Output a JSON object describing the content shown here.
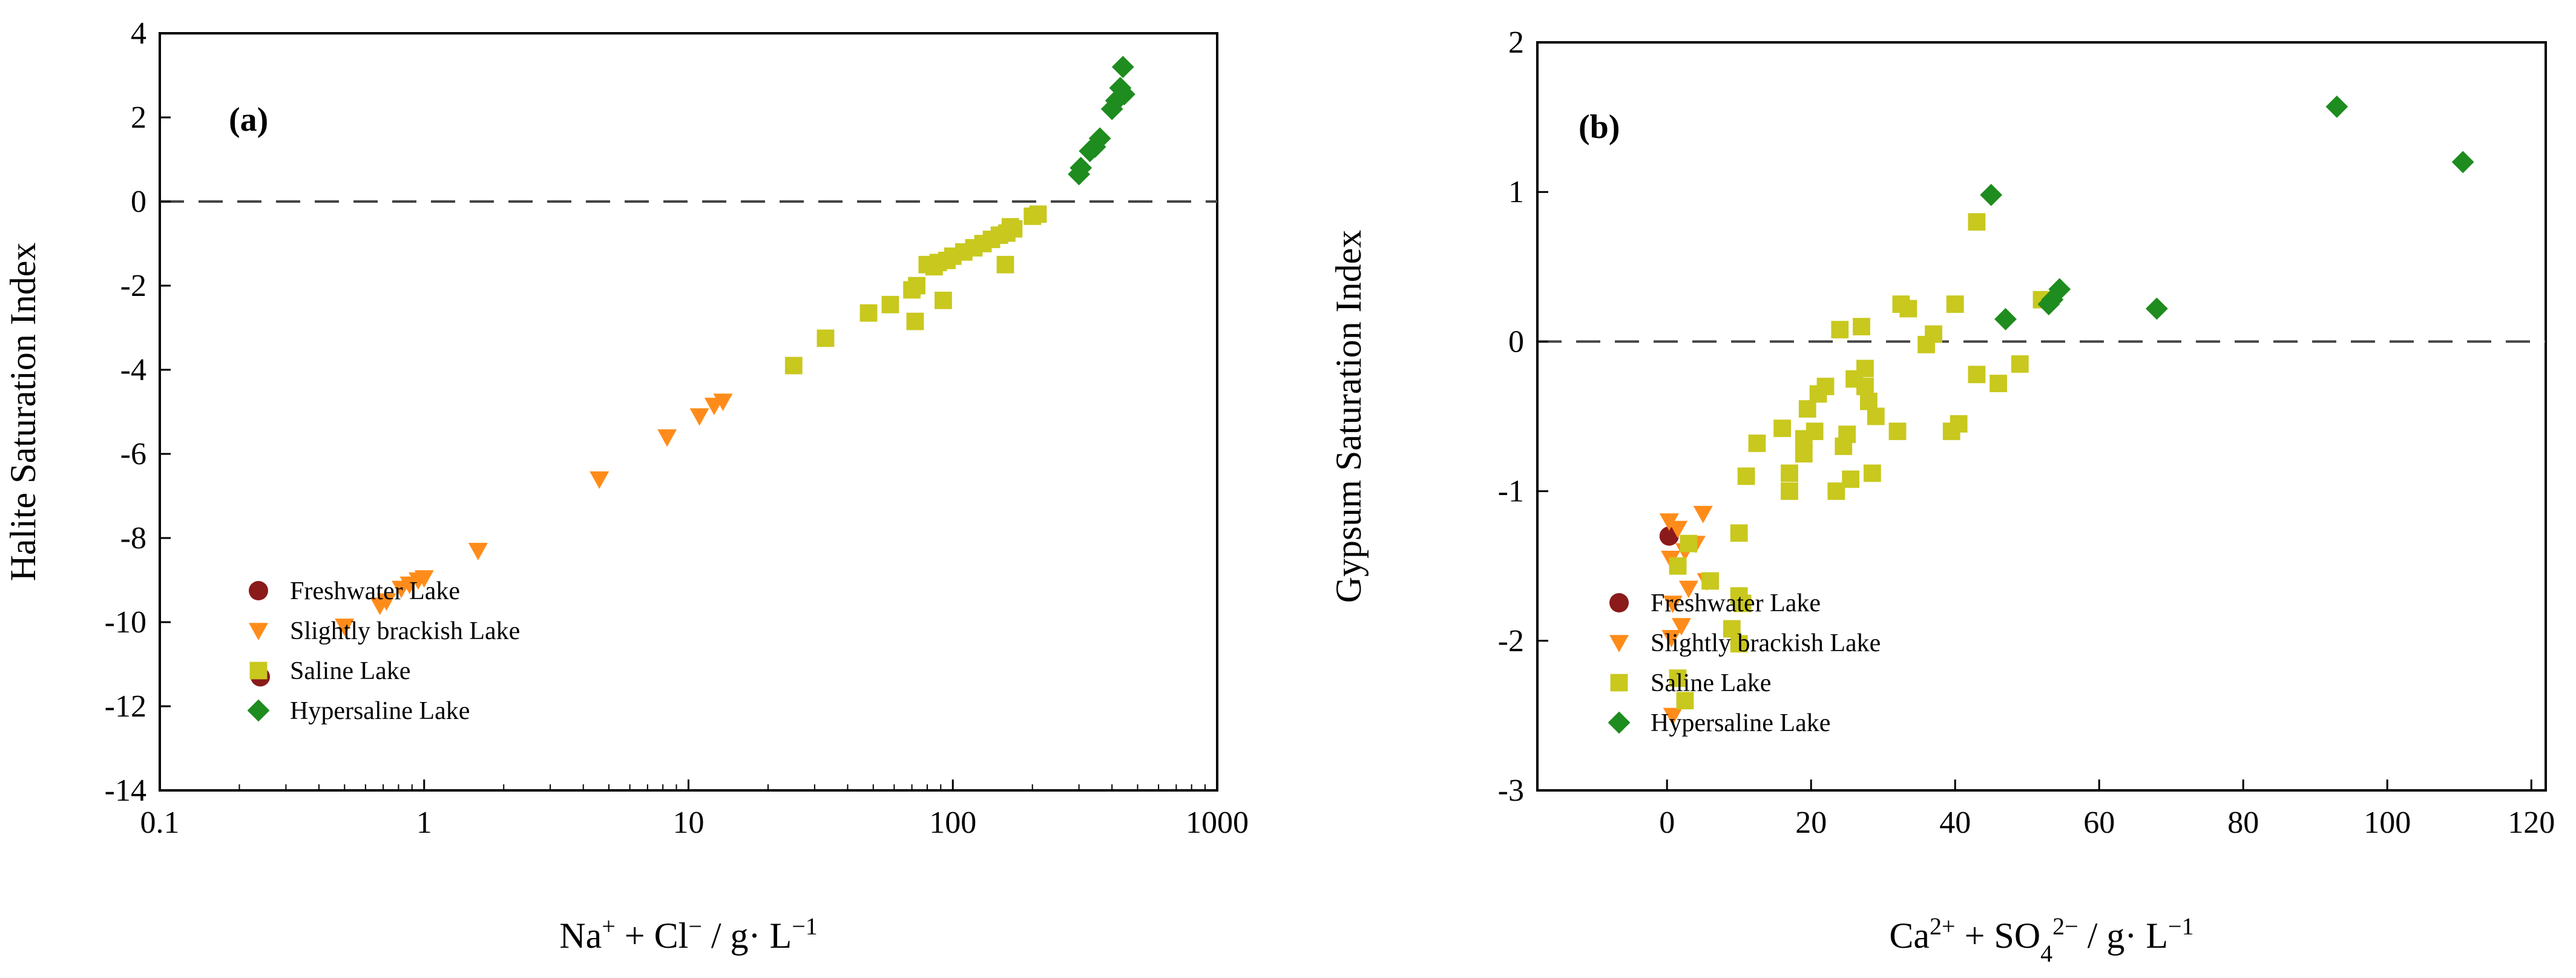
{
  "chart_data": [
    {
      "panel": "(a)",
      "type": "scatter",
      "xscale": "log",
      "xlim": [
        0.1,
        1000
      ],
      "ylim": [
        -14,
        4
      ],
      "xticks": [
        "0.1",
        "1",
        "10",
        "100",
        "1000"
      ],
      "yticks": [
        "-14",
        "-12",
        "-10",
        "-8",
        "-6",
        "-4",
        "-2",
        "0",
        "2",
        "4"
      ],
      "xlabel": {
        "t1": "Na",
        "s1": "+",
        "t2": " + Cl",
        "s2": "−",
        "t3": " / g· L",
        "s3": "−1"
      },
      "ylabel": "Halite Saturation Index",
      "reference_line": {
        "y": 0,
        "style": "dashed"
      },
      "series": [
        {
          "name": "Freshwater Lake",
          "marker": "circle",
          "color": "#8b1a1a",
          "points": [
            [
              0.24,
              -11.3
            ]
          ]
        },
        {
          "name": "Slightly brackish Lake",
          "marker": "triangle-down",
          "color": "#ff8c1a",
          "points": [
            [
              0.5,
              -10.1
            ],
            [
              0.68,
              -9.6
            ],
            [
              0.72,
              -9.5
            ],
            [
              0.82,
              -9.2
            ],
            [
              0.88,
              -9.1
            ],
            [
              0.95,
              -9.0
            ],
            [
              1.0,
              -8.95
            ],
            [
              1.6,
              -8.3
            ],
            [
              4.6,
              -6.6
            ],
            [
              8.3,
              -5.6
            ],
            [
              11.0,
              -5.1
            ],
            [
              12.5,
              -4.85
            ],
            [
              13.5,
              -4.75
            ]
          ]
        },
        {
          "name": "Saline Lake",
          "marker": "square",
          "color": "#c8c81e",
          "points": [
            [
              25,
              -3.9
            ],
            [
              33,
              -3.25
            ],
            [
              48,
              -2.65
            ],
            [
              58,
              -2.45
            ],
            [
              70,
              -2.1
            ],
            [
              73,
              -2.0
            ],
            [
              72,
              -2.85
            ],
            [
              80,
              -1.5
            ],
            [
              85,
              -1.55
            ],
            [
              88,
              -1.45
            ],
            [
              92,
              -2.35
            ],
            [
              95,
              -1.4
            ],
            [
              100,
              -1.3
            ],
            [
              110,
              -1.2
            ],
            [
              120,
              -1.1
            ],
            [
              130,
              -1.0
            ],
            [
              140,
              -0.9
            ],
            [
              150,
              -0.8
            ],
            [
              160,
              -0.75
            ],
            [
              165,
              -0.6
            ],
            [
              158,
              -1.5
            ],
            [
              170,
              -0.65
            ],
            [
              200,
              -0.35
            ],
            [
              210,
              -0.3
            ]
          ]
        },
        {
          "name": "Hypersaline Lake",
          "marker": "diamond",
          "color": "#1e8c1e",
          "points": [
            [
              300,
              0.65
            ],
            [
              305,
              0.8
            ],
            [
              330,
              1.2
            ],
            [
              345,
              1.3
            ],
            [
              360,
              1.5
            ],
            [
              400,
              2.2
            ],
            [
              415,
              2.4
            ],
            [
              430,
              2.7
            ],
            [
              440,
              3.2
            ],
            [
              445,
              2.55
            ]
          ]
        }
      ],
      "legend": {
        "placement": "bottom-right",
        "entries": [
          "Freshwater Lake",
          "Slightly brackish Lake",
          "Saline Lake",
          "Hypersaline Lake"
        ]
      }
    },
    {
      "panel": "(b)",
      "type": "scatter",
      "xscale": "linear",
      "xlim": [
        -18,
        122
      ],
      "ylim": [
        -3,
        2
      ],
      "xticks": [
        "0",
        "20",
        "40",
        "60",
        "80",
        "100",
        "120"
      ],
      "yticks": [
        "-3",
        "-2",
        "-1",
        "0",
        "1",
        "2"
      ],
      "xlabel": {
        "t1": "Ca",
        "s1": "2+",
        "t2": " + SO",
        "sub": "4",
        "s2": "2−",
        "t3": " / g· L",
        "s3": "−1"
      },
      "ylabel": "Gypsum Saturation Index",
      "reference_line": {
        "y": 0,
        "style": "dashed"
      },
      "series": [
        {
          "name": "Freshwater Lake",
          "marker": "circle",
          "color": "#8b1a1a",
          "points": [
            [
              0.3,
              -1.3
            ]
          ]
        },
        {
          "name": "Slightly brackish Lake",
          "marker": "triangle-down",
          "color": "#ff8c1a",
          "points": [
            [
              0.3,
              -1.2
            ],
            [
              0.5,
              -1.45
            ],
            [
              0.8,
              -1.75
            ],
            [
              0.6,
              -1.98
            ],
            [
              0.8,
              -2.5
            ],
            [
              1.5,
              -1.25
            ],
            [
              2.0,
              -1.9
            ],
            [
              2.5,
              -1.4
            ],
            [
              3.0,
              -1.65
            ],
            [
              4.0,
              -1.35
            ],
            [
              5.0,
              -1.15
            ],
            [
              5.5,
              -1.6
            ]
          ]
        },
        {
          "name": "Saline Lake",
          "marker": "square",
          "color": "#c8c81e",
          "points": [
            [
              1.5,
              -2.25
            ],
            [
              2.5,
              -2.4
            ],
            [
              1.5,
              -1.5
            ],
            [
              3.0,
              -1.35
            ],
            [
              6.0,
              -1.6
            ],
            [
              9.0,
              -1.92
            ],
            [
              10,
              -2.02
            ],
            [
              10,
              -1.7
            ],
            [
              10.5,
              -1.75
            ],
            [
              10,
              -1.28
            ],
            [
              11,
              -0.9
            ],
            [
              12.5,
              -0.68
            ],
            [
              16,
              -0.58
            ],
            [
              17,
              -0.88
            ],
            [
              17,
              -1.0
            ],
            [
              19,
              -0.65
            ],
            [
              19,
              -0.75
            ],
            [
              19.5,
              -0.45
            ],
            [
              20.5,
              -0.6
            ],
            [
              21,
              -0.35
            ],
            [
              22,
              -0.3
            ],
            [
              23.5,
              -1.0
            ],
            [
              24,
              0.08
            ],
            [
              24.5,
              -0.7
            ],
            [
              25,
              -0.62
            ],
            [
              25.5,
              -0.92
            ],
            [
              26,
              -0.25
            ],
            [
              27,
              0.1
            ],
            [
              27.5,
              -0.18
            ],
            [
              27.5,
              -0.3
            ],
            [
              28,
              -0.4
            ],
            [
              28.5,
              -0.88
            ],
            [
              29,
              -0.5
            ],
            [
              32,
              -0.6
            ],
            [
              32.5,
              0.25
            ],
            [
              33.5,
              0.22
            ],
            [
              36,
              -0.02
            ],
            [
              37,
              0.05
            ],
            [
              39.5,
              -0.6
            ],
            [
              40,
              0.25
            ],
            [
              40.5,
              -0.55
            ],
            [
              43,
              0.8
            ],
            [
              43,
              -0.22
            ],
            [
              46,
              -0.28
            ],
            [
              49,
              -0.15
            ],
            [
              52,
              0.28
            ]
          ]
        },
        {
          "name": "Hypersaline Lake",
          "marker": "diamond",
          "color": "#1e8c1e",
          "points": [
            [
              45,
              0.98
            ],
            [
              47,
              0.15
            ],
            [
              53,
              0.25
            ],
            [
              53.5,
              0.28
            ],
            [
              54.5,
              0.35
            ],
            [
              68,
              0.22
            ],
            [
              93,
              1.57
            ],
            [
              110.5,
              1.2
            ]
          ]
        }
      ],
      "legend": {
        "placement": "bottom-right",
        "entries": [
          "Freshwater Lake",
          "Slightly brackish Lake",
          "Saline Lake",
          "Hypersaline Lake"
        ]
      }
    }
  ]
}
